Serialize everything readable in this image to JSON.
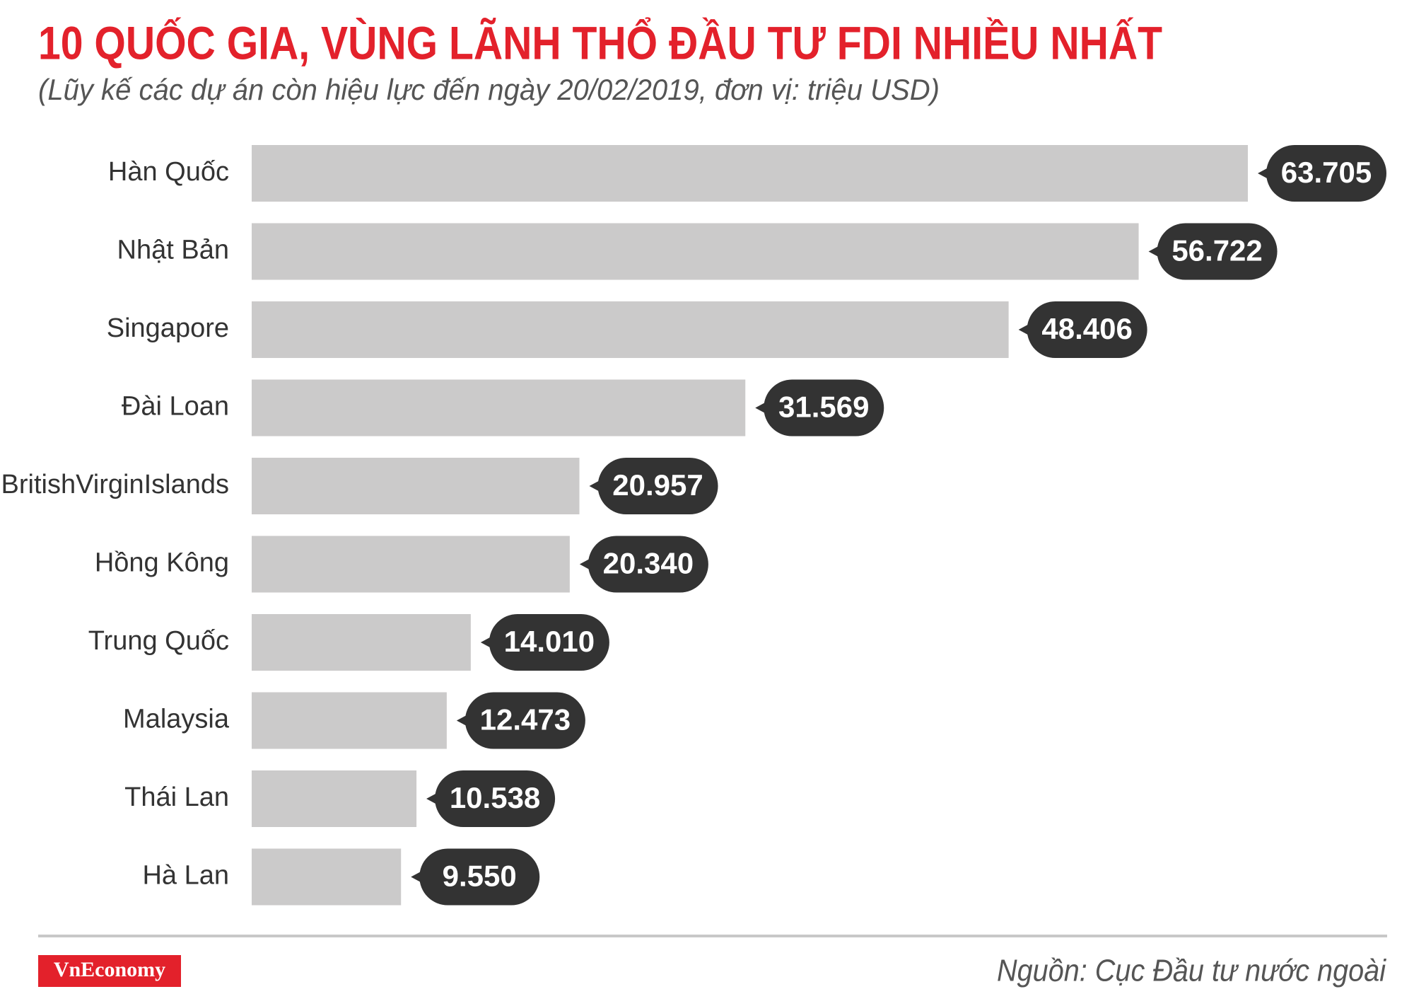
{
  "chart_data": {
    "type": "bar",
    "orientation": "horizontal",
    "title": "10 QUỐC GIA, VÙNG LÃNH THỔ ĐẦU TƯ FDI NHIỀU NHẤT",
    "subtitle": "(Lũy kế các dự án còn hiệu lực đến ngày 20/02/2019, đơn vị: triệu USD)",
    "categories": [
      "Hàn Quốc",
      "Nhật Bản",
      "Singapore",
      "Đài Loan",
      "BritishVirginIslands",
      "Hồng Kông",
      "Trung Quốc",
      "Malaysia",
      "Thái Lan",
      "Hà Lan"
    ],
    "values": [
      63705,
      56722,
      48406,
      31569,
      20957,
      20340,
      14010,
      12473,
      10538,
      9550
    ],
    "value_labels": [
      "63.705",
      "56.722",
      "48.406",
      "31.569",
      "20.957",
      "20.340",
      "14.010",
      "12.473",
      "10.538",
      "9.550"
    ],
    "color": "#cbcaca",
    "label_color": "#333333",
    "brand": "VnEconomy",
    "source": "Nguồn: Cục Đầu tư nước ngoài"
  }
}
